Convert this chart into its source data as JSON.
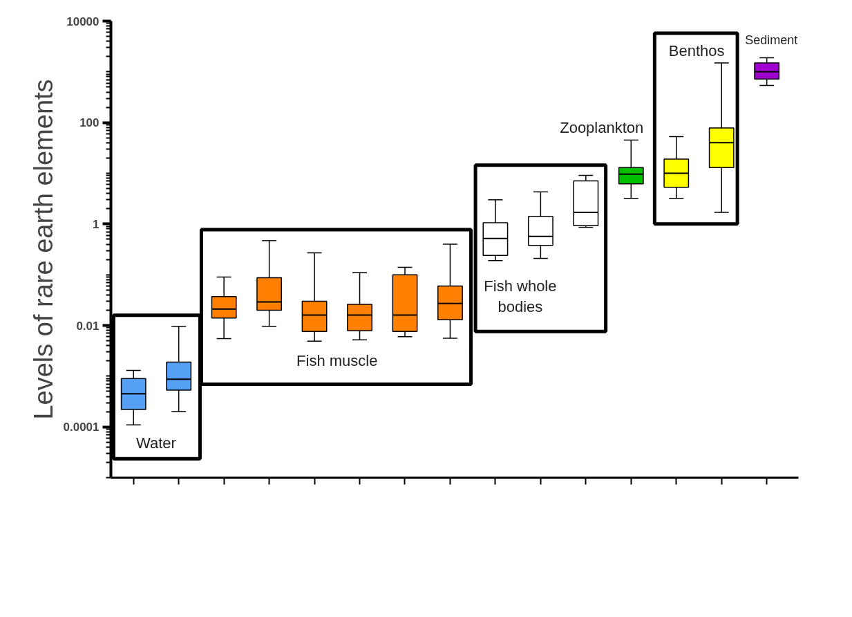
{
  "chart_data": {
    "type": "box",
    "ylabel": "Levels of rare earth elements",
    "log": "y",
    "grid": false,
    "tick_labels": "y",
    "categories": [
      null,
      null,
      null,
      null,
      null,
      null,
      null,
      null,
      null,
      null,
      null,
      null,
      null,
      null,
      null
    ],
    "ylim": [
      1e-05,
      10000
    ],
    "yticks": [
      0.0001,
      0.01,
      1,
      100,
      10000
    ],
    "colors": [
      "#55a0f5",
      "#55a0f5",
      "#ff8000",
      "#ff8000",
      "#ff8000",
      "#ff8000",
      "#ff8000",
      "#ff8000",
      "#ffffff",
      "#ffffff",
      "#ffffff",
      "#00c000",
      "#ffff00",
      "#ffff00",
      "#a000d0"
    ],
    "boxes": [
      {
        "low": 0.00011,
        "q1": 0.00022,
        "median": 0.00045,
        "q3": 0.0009,
        "high": 0.0013
      },
      {
        "low": 0.0002,
        "q1": 0.00053,
        "median": 0.00087,
        "q3": 0.0019,
        "high": 0.0096
      },
      {
        "low": 0.0055,
        "q1": 0.014,
        "median": 0.021,
        "q3": 0.037,
        "high": 0.09
      },
      {
        "low": 0.0096,
        "q1": 0.02,
        "median": 0.029,
        "q3": 0.087,
        "high": 0.47
      },
      {
        "low": 0.0049,
        "q1": 0.0076,
        "median": 0.016,
        "q3": 0.03,
        "high": 0.27
      },
      {
        "low": 0.0052,
        "q1": 0.0079,
        "median": 0.016,
        "q3": 0.026,
        "high": 0.11
      },
      {
        "low": 0.006,
        "q1": 0.0076,
        "median": 0.016,
        "q3": 0.1,
        "high": 0.14
      },
      {
        "low": 0.0056,
        "q1": 0.013,
        "median": 0.027,
        "q3": 0.06,
        "high": 0.4
      },
      {
        "low": 0.19,
        "q1": 0.24,
        "median": 0.52,
        "q3": 1.06,
        "high": 3
      },
      {
        "low": 0.21,
        "q1": 0.38,
        "median": 0.57,
        "q3": 1.4,
        "high": 4.3
      },
      {
        "low": 0.86,
        "q1": 0.93,
        "median": 1.7,
        "q3": 7.1,
        "high": 9.1
      },
      {
        "low": 3.2,
        "q1": 6.2,
        "median": 9.6,
        "q3": 13,
        "high": 45
      },
      {
        "low": 3.2,
        "q1": 5.3,
        "median": 10,
        "q3": 19,
        "high": 53
      },
      {
        "low": 1.7,
        "q1": 13,
        "median": 40,
        "q3": 78,
        "high": 1500
      },
      {
        "low": 540,
        "q1": 720,
        "median": 1000,
        "q3": 1500,
        "high": 1900
      }
    ],
    "annotations": [
      "Water",
      "Fish muscle",
      "Fish whole\nbodies",
      "Zooplankton",
      "Benthos",
      "Sediment"
    ]
  }
}
